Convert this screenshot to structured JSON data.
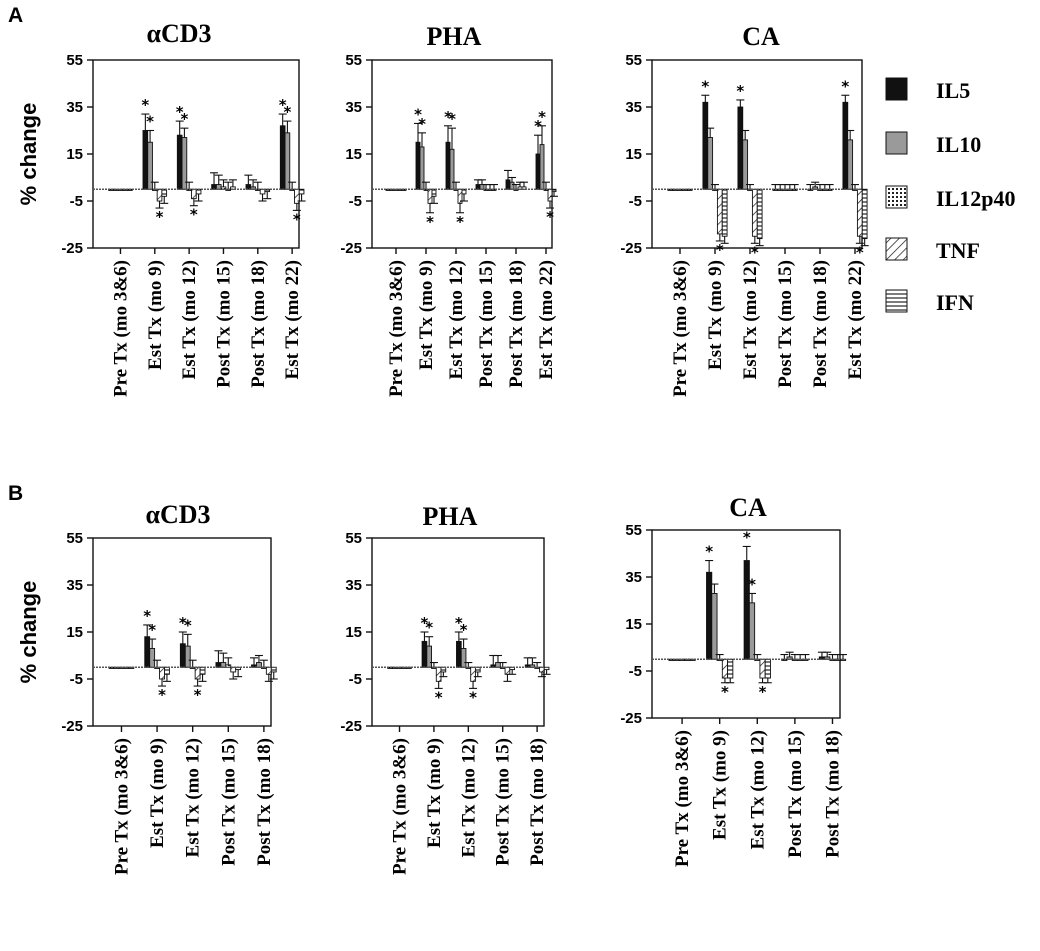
{
  "panels": [
    {
      "letter": "A",
      "charts": [
        {
          "title": "αCD3",
          "ylabel": "% change",
          "yticks": [
            "55",
            "35",
            "15",
            "-5",
            "-25"
          ],
          "categories": [
            "Pre Tx (mo 3&6)",
            "Est Tx (mo 9)",
            "Est Tx (mo 12)",
            "Post Tx (mo 15)",
            "Post Tx (mo 18)",
            "Est Tx (mo 22)"
          ]
        },
        {
          "title": "PHA",
          "ylabel": "",
          "yticks": [
            "55",
            "35",
            "15",
            "-5",
            "-25"
          ],
          "categories": [
            "Pre Tx (mo 3&6)",
            "Est Tx (mo 9)",
            "Est Tx (mo 12)",
            "Post Tx (mo 15)",
            "Post Tx (mo 18)",
            "Est Tx (mo 22)"
          ]
        },
        {
          "title": "CA",
          "ylabel": "",
          "yticks": [
            "55",
            "35",
            "15",
            "-5",
            "-25"
          ],
          "categories": [
            "Pre Tx (mo 3&6)",
            "Est Tx (mo 9)",
            "Est Tx (mo 12)",
            "Post Tx (mo 15)",
            "Post Tx (mo 18)",
            "Est Tx (mo 22)"
          ]
        }
      ]
    },
    {
      "letter": "B",
      "charts": [
        {
          "title": "αCD3",
          "ylabel": "% change",
          "yticks": [
            "55",
            "35",
            "15",
            "-5",
            "-25"
          ],
          "categories": [
            "Pre Tx (mo 3&6)",
            "Est Tx (mo 9)",
            "Est Tx (mo 12)",
            "Post Tx (mo 15)",
            "Post Tx (mo 18)"
          ]
        },
        {
          "title": "PHA",
          "ylabel": "",
          "yticks": [
            "55",
            "35",
            "15",
            "-5",
            "-25"
          ],
          "categories": [
            "Pre Tx (mo 3&6)",
            "Est Tx (mo 9)",
            "Est Tx (mo 12)",
            "Post Tx (mo 15)",
            "Post Tx (mo 18)"
          ]
        },
        {
          "title": "CA",
          "ylabel": "",
          "yticks": [
            "55",
            "35",
            "15",
            "-5",
            "-25"
          ],
          "categories": [
            "Pre Tx (mo 3&6)",
            "Est Tx (mo 9)",
            "Est Tx (mo 12)",
            "Post Tx (mo 15)",
            "Post Tx (mo 18)"
          ]
        }
      ]
    }
  ],
  "legend": [
    {
      "label": "IL5",
      "pattern": "solid"
    },
    {
      "label": "IL10",
      "pattern": "gray"
    },
    {
      "label": "IL12p40",
      "pattern": "dots"
    },
    {
      "label": "TNF",
      "pattern": "diagonal"
    },
    {
      "label": "IFN",
      "pattern": "horizontal"
    }
  ],
  "colors": {
    "il5": "#111111",
    "il10": "#9a9a9a",
    "axis": "#111111"
  },
  "chart_data": [
    {
      "type": "bar",
      "panel": "A",
      "title": "αCD3",
      "ylabel": "% change",
      "ylim": [
        -25,
        55
      ],
      "categories": [
        "Pre Tx (mo 3&6)",
        "Est Tx (mo 9)",
        "Est Tx (mo 12)",
        "Post Tx (mo 15)",
        "Post Tx (mo 18)",
        "Est Tx (mo 22)"
      ],
      "series": [
        {
          "name": "IL5",
          "values": [
            0,
            25,
            23,
            2,
            2,
            27
          ],
          "errors": [
            0,
            7,
            6,
            5,
            4,
            5
          ]
        },
        {
          "name": "IL10",
          "values": [
            0,
            20,
            22,
            2,
            1,
            24
          ],
          "errors": [
            0,
            5,
            4,
            4,
            3,
            5
          ]
        },
        {
          "name": "IL12p40",
          "values": [
            0,
            0,
            0,
            1,
            0,
            0
          ],
          "errors": [
            0,
            3,
            3,
            3,
            3,
            3
          ]
        },
        {
          "name": "TNF",
          "values": [
            0,
            -5,
            -4,
            0,
            -2,
            -6
          ],
          "errors": [
            0,
            3,
            3,
            3,
            3,
            3
          ]
        },
        {
          "name": "IFN",
          "values": [
            0,
            -3,
            -2,
            1,
            -1,
            -2
          ],
          "errors": [
            0,
            3,
            3,
            3,
            3,
            3
          ]
        }
      ],
      "annotations": [
        {
          "category": 1,
          "series": 0,
          "text": "*",
          "pos": "above"
        },
        {
          "category": 1,
          "series": 1,
          "text": "*",
          "pos": "above"
        },
        {
          "category": 1,
          "series": 3,
          "text": "*",
          "pos": "below"
        },
        {
          "category": 2,
          "series": 0,
          "text": "*",
          "pos": "above"
        },
        {
          "category": 2,
          "series": 1,
          "text": "*",
          "pos": "above"
        },
        {
          "category": 2,
          "series": 3,
          "text": "*",
          "pos": "below"
        },
        {
          "category": 5,
          "series": 0,
          "text": "*",
          "pos": "above"
        },
        {
          "category": 5,
          "series": 1,
          "text": "*",
          "pos": "above"
        },
        {
          "category": 5,
          "series": 3,
          "text": "*",
          "pos": "below"
        }
      ]
    },
    {
      "type": "bar",
      "panel": "A",
      "title": "PHA",
      "ylabel": "",
      "ylim": [
        -25,
        55
      ],
      "categories": [
        "Pre Tx (mo 3&6)",
        "Est Tx (mo 9)",
        "Est Tx (mo 12)",
        "Post Tx (mo 15)",
        "Post Tx (mo 18)",
        "Est Tx (mo 22)"
      ],
      "series": [
        {
          "name": "IL5",
          "values": [
            0,
            20,
            20,
            2,
            4,
            15
          ],
          "errors": [
            0,
            8,
            7,
            2,
            4,
            8
          ]
        },
        {
          "name": "IL10",
          "values": [
            0,
            18,
            17,
            2,
            3,
            19
          ],
          "errors": [
            0,
            6,
            9,
            2,
            2,
            8
          ]
        },
        {
          "name": "IL12p40",
          "values": [
            0,
            0,
            0,
            0,
            0,
            0
          ],
          "errors": [
            0,
            3,
            3,
            2,
            2,
            3
          ]
        },
        {
          "name": "TNF",
          "values": [
            0,
            -6,
            -6,
            0,
            1,
            -5
          ],
          "errors": [
            0,
            4,
            4,
            2,
            2,
            3
          ]
        },
        {
          "name": "IFN",
          "values": [
            0,
            -3,
            -2,
            0,
            1,
            -1
          ],
          "errors": [
            0,
            3,
            3,
            2,
            2,
            2
          ]
        }
      ],
      "annotations": [
        {
          "category": 1,
          "series": 0,
          "text": "*",
          "pos": "above"
        },
        {
          "category": 1,
          "series": 1,
          "text": "*",
          "pos": "above"
        },
        {
          "category": 1,
          "series": 3,
          "text": "*",
          "pos": "below"
        },
        {
          "category": 2,
          "series": 0,
          "text": "*",
          "pos": "above"
        },
        {
          "category": 2,
          "series": 1,
          "text": "*",
          "pos": "above"
        },
        {
          "category": 2,
          "series": 3,
          "text": "*",
          "pos": "below"
        },
        {
          "category": 5,
          "series": 0,
          "text": "*",
          "pos": "above"
        },
        {
          "category": 5,
          "series": 1,
          "text": "*",
          "pos": "above"
        },
        {
          "category": 5,
          "series": 3,
          "text": "*",
          "pos": "below"
        }
      ]
    },
    {
      "type": "bar",
      "panel": "A",
      "title": "CA",
      "ylabel": "",
      "ylim": [
        -25,
        55
      ],
      "categories": [
        "Pre Tx (mo 3&6)",
        "Est Tx (mo 9)",
        "Est Tx (mo 12)",
        "Post Tx (mo 15)",
        "Post Tx (mo 18)",
        "Est Tx (mo 22)"
      ],
      "series": [
        {
          "name": "IL5",
          "values": [
            0,
            37,
            35,
            0,
            0,
            37
          ],
          "errors": [
            0,
            3,
            3,
            2,
            2,
            3
          ]
        },
        {
          "name": "IL10",
          "values": [
            0,
            22,
            21,
            0,
            1,
            21
          ],
          "errors": [
            0,
            4,
            4,
            2,
            2,
            4
          ]
        },
        {
          "name": "IL12p40",
          "values": [
            0,
            0,
            0,
            0,
            0,
            0
          ],
          "errors": [
            0,
            2,
            2,
            2,
            2,
            2
          ]
        },
        {
          "name": "TNF",
          "values": [
            0,
            -19,
            -20,
            0,
            0,
            -20
          ],
          "errors": [
            0,
            3,
            3,
            2,
            2,
            3
          ]
        },
        {
          "name": "IFN",
          "values": [
            0,
            -20,
            -21,
            0,
            0,
            -21
          ],
          "errors": [
            0,
            3,
            3,
            2,
            2,
            3
          ]
        }
      ],
      "annotations": [
        {
          "category": 1,
          "series": 0,
          "text": "*",
          "pos": "above"
        },
        {
          "category": 1,
          "series": 3,
          "text": "*",
          "pos": "below"
        },
        {
          "category": 2,
          "series": 0,
          "text": "*",
          "pos": "above"
        },
        {
          "category": 2,
          "series": 3,
          "text": "*",
          "pos": "below"
        },
        {
          "category": 5,
          "series": 0,
          "text": "*",
          "pos": "above"
        },
        {
          "category": 5,
          "series": 3,
          "text": "*",
          "pos": "below"
        }
      ]
    },
    {
      "type": "bar",
      "panel": "B",
      "title": "αCD3",
      "ylabel": "% change",
      "ylim": [
        -25,
        55
      ],
      "categories": [
        "Pre Tx (mo 3&6)",
        "Est Tx (mo 9)",
        "Est Tx (mo 12)",
        "Post Tx (mo 15)",
        "Post Tx (mo 18)"
      ],
      "series": [
        {
          "name": "IL5",
          "values": [
            0,
            13,
            10,
            2,
            1
          ],
          "errors": [
            0,
            5,
            5,
            5,
            3
          ]
        },
        {
          "name": "IL10",
          "values": [
            0,
            8,
            9,
            2,
            2
          ],
          "errors": [
            0,
            4,
            5,
            4,
            3
          ]
        },
        {
          "name": "IL12p40",
          "values": [
            0,
            0,
            0,
            1,
            0
          ],
          "errors": [
            0,
            3,
            3,
            3,
            3
          ]
        },
        {
          "name": "TNF",
          "values": [
            0,
            -5,
            -5,
            -2,
            -3
          ],
          "errors": [
            0,
            3,
            3,
            3,
            3
          ]
        },
        {
          "name": "IFN",
          "values": [
            0,
            -3,
            -3,
            -1,
            -2
          ],
          "errors": [
            0,
            3,
            3,
            3,
            3
          ]
        }
      ],
      "annotations": [
        {
          "category": 1,
          "series": 0,
          "text": "*",
          "pos": "above"
        },
        {
          "category": 1,
          "series": 1,
          "text": "*",
          "pos": "above"
        },
        {
          "category": 1,
          "series": 3,
          "text": "*",
          "pos": "below"
        },
        {
          "category": 2,
          "series": 0,
          "text": "*",
          "pos": "above"
        },
        {
          "category": 2,
          "series": 1,
          "text": "*",
          "pos": "above"
        },
        {
          "category": 2,
          "series": 3,
          "text": "*",
          "pos": "below"
        }
      ]
    },
    {
      "type": "bar",
      "panel": "B",
      "title": "PHA",
      "ylabel": "",
      "ylim": [
        -25,
        55
      ],
      "categories": [
        "Pre Tx (mo 3&6)",
        "Est Tx (mo 9)",
        "Est Tx (mo 12)",
        "Post Tx (mo 15)",
        "Post Tx (mo 18)"
      ],
      "series": [
        {
          "name": "IL5",
          "values": [
            0,
            11,
            11,
            1,
            1
          ],
          "errors": [
            0,
            4,
            4,
            4,
            3
          ]
        },
        {
          "name": "IL10",
          "values": [
            0,
            9,
            8,
            2,
            1
          ],
          "errors": [
            0,
            4,
            4,
            3,
            3
          ]
        },
        {
          "name": "IL12p40",
          "values": [
            0,
            0,
            0,
            0,
            0
          ],
          "errors": [
            0,
            2,
            2,
            2,
            2
          ]
        },
        {
          "name": "TNF",
          "values": [
            0,
            -6,
            -6,
            -3,
            -2
          ],
          "errors": [
            0,
            3,
            3,
            3,
            2
          ]
        },
        {
          "name": "IFN",
          "values": [
            0,
            -2,
            -2,
            -1,
            -1
          ],
          "errors": [
            0,
            2,
            2,
            2,
            2
          ]
        }
      ],
      "annotations": [
        {
          "category": 1,
          "series": 0,
          "text": "*",
          "pos": "above"
        },
        {
          "category": 1,
          "series": 1,
          "text": "*",
          "pos": "above"
        },
        {
          "category": 1,
          "series": 3,
          "text": "*",
          "pos": "below"
        },
        {
          "category": 2,
          "series": 0,
          "text": "*",
          "pos": "above"
        },
        {
          "category": 2,
          "series": 1,
          "text": "*",
          "pos": "above"
        },
        {
          "category": 2,
          "series": 3,
          "text": "*",
          "pos": "below"
        }
      ]
    },
    {
      "type": "bar",
      "panel": "B",
      "title": "CA",
      "ylabel": "",
      "ylim": [
        -25,
        55
      ],
      "categories": [
        "Pre Tx (mo 3&6)",
        "Est Tx (mo 9)",
        "Est Tx (mo 12)",
        "Post Tx (mo 15)",
        "Post Tx (mo 18)"
      ],
      "series": [
        {
          "name": "IL5",
          "values": [
            0,
            37,
            42,
            0,
            1
          ],
          "errors": [
            0,
            5,
            6,
            2,
            2
          ]
        },
        {
          "name": "IL10",
          "values": [
            0,
            28,
            24,
            1,
            1
          ],
          "errors": [
            0,
            4,
            4,
            2,
            2
          ]
        },
        {
          "name": "IL12p40",
          "values": [
            0,
            0,
            0,
            0,
            0
          ],
          "errors": [
            0,
            2,
            2,
            2,
            2
          ]
        },
        {
          "name": "TNF",
          "values": [
            0,
            -8,
            -8,
            0,
            0
          ],
          "errors": [
            0,
            2,
            2,
            2,
            2
          ]
        },
        {
          "name": "IFN",
          "values": [
            0,
            -8,
            -8,
            0,
            0
          ],
          "errors": [
            0,
            2,
            2,
            2,
            2
          ]
        }
      ],
      "annotations": [
        {
          "category": 1,
          "series": 0,
          "text": "*",
          "pos": "above"
        },
        {
          "category": 1,
          "series": 3,
          "text": "*",
          "pos": "below"
        },
        {
          "category": 2,
          "series": 0,
          "text": "*",
          "pos": "above"
        },
        {
          "category": 2,
          "series": 1,
          "text": "*",
          "pos": "above"
        },
        {
          "category": 2,
          "series": 3,
          "text": "*",
          "pos": "below"
        }
      ]
    }
  ]
}
